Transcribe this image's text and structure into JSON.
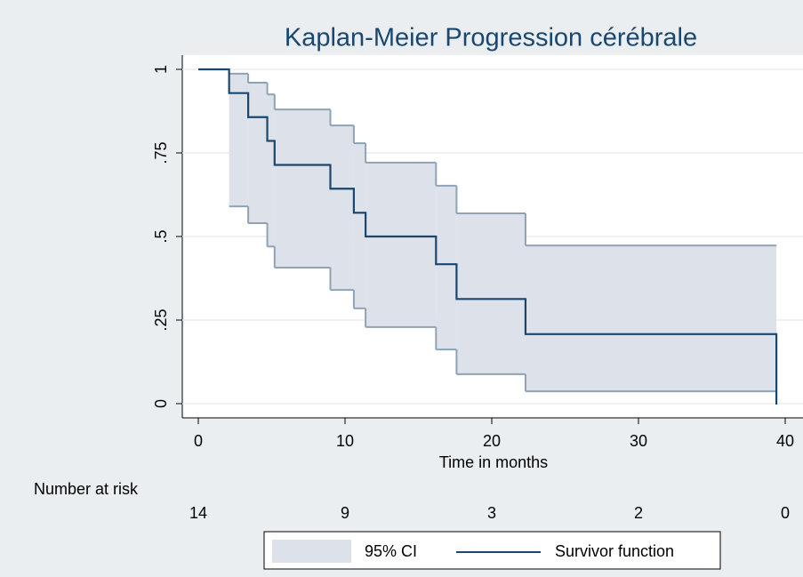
{
  "chart_data": {
    "type": "km",
    "title": "Kaplan-Meier Progression cérébrale",
    "x_label": "Time in months",
    "x": [
      0,
      2.1,
      3.4,
      4.7,
      5.2,
      9.0,
      10.6,
      11.4,
      16.2,
      17.6,
      22.3,
      39.4
    ],
    "series": [
      {
        "name": "95% CI",
        "color": "#dde2ea",
        "line_color": "#8fa3b5",
        "lower": [
          null,
          0.59,
          0.54,
          0.47,
          0.407,
          0.34,
          0.285,
          0.229,
          0.162,
          0.088,
          0.037,
          null
        ],
        "upper": [
          null,
          0.987,
          0.96,
          0.925,
          0.88,
          0.832,
          0.779,
          0.721,
          0.652,
          0.569,
          0.473,
          null
        ]
      },
      {
        "name": "Survivor function",
        "color": "#1a476f",
        "values": [
          1,
          0.929,
          0.857,
          0.786,
          0.714,
          0.643,
          0.571,
          0.5,
          0.417,
          0.313,
          0.208,
          0
        ]
      }
    ],
    "xlim": [
      0,
      40
    ],
    "xticks": [
      0,
      10,
      20,
      30,
      40
    ],
    "ylim": [
      0,
      1
    ],
    "yticks": [
      0,
      {
        "value": 0.25,
        "label": ".25"
      },
      {
        "value": 0.5,
        "label": ".5"
      },
      {
        "value": 0.75,
        "label": ".75"
      },
      1
    ],
    "grid": true,
    "at_risk": {
      "title": "Number at risk",
      "values": [
        14,
        9,
        3,
        2,
        0
      ]
    }
  }
}
